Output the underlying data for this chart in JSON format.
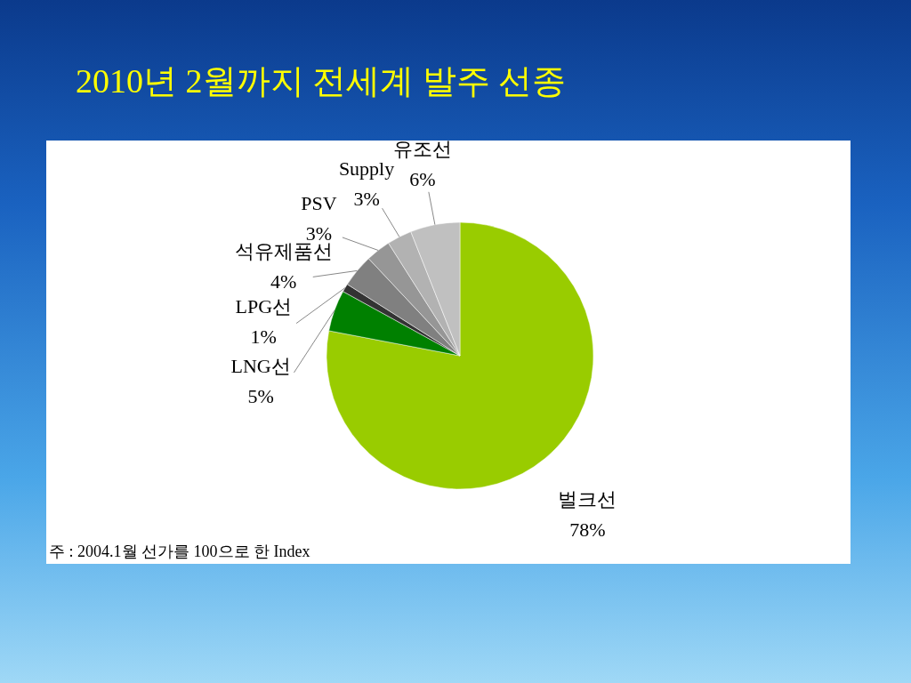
{
  "chart_data": {
    "type": "pie",
    "title": "2010년 2월까지 전세계 발주 선종",
    "categories": [
      "벌크선",
      "LNG선",
      "LPG선",
      "석유제품선",
      "PSV",
      "Supply",
      "유조선"
    ],
    "values": [
      78,
      5,
      1,
      4,
      3,
      3,
      6
    ],
    "value_labels": [
      "78%",
      "5%",
      "1%",
      "4%",
      "3%",
      "3%",
      "6%"
    ],
    "colors": [
      "#99cc00",
      "#008000",
      "#333333",
      "#808080",
      "#969696",
      "#b2b2b2",
      "#c0c0c0"
    ],
    "annotations": [
      "주 : 2004.1월 선가를 100으로 한 Index"
    ]
  }
}
